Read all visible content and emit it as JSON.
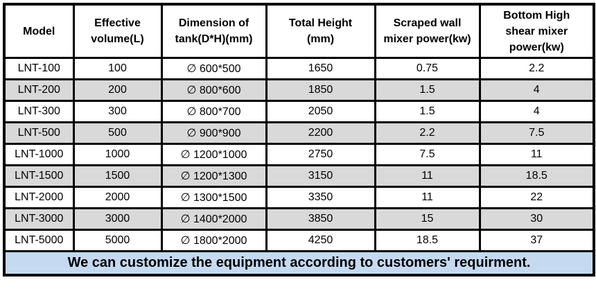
{
  "colors": {
    "row_shade": "#d9d9d9",
    "footer_bg": "#c5d9f1",
    "border": "#000000",
    "text": "#000000"
  },
  "table": {
    "headers": [
      {
        "label": "Model",
        "lines": [
          "Model"
        ]
      },
      {
        "label": "Effective volume(L)",
        "lines": [
          "Effective",
          "volume(L)"
        ]
      },
      {
        "label": "Dimension of tank(D*H)(mm)",
        "lines": [
          "Dimension of",
          "tank(D*H)(mm)"
        ]
      },
      {
        "label": "Total Height (mm)",
        "lines": [
          "Total Height",
          "(mm)"
        ]
      },
      {
        "label": "Scraped wall mixer power(kw)",
        "lines": [
          "Scraped wall",
          "mixer power(kw)"
        ]
      },
      {
        "label": "Bottom High shear mixer power(kw)",
        "lines": [
          "Bottom High",
          "shear mixer",
          "power(kw)"
        ]
      }
    ],
    "rows": [
      [
        "LNT-100",
        "100",
        "∅ 600*500",
        "1650",
        "0.75",
        "2.2"
      ],
      [
        "LNT-200",
        "200",
        "∅ 800*600",
        "1850",
        "1.5",
        "4"
      ],
      [
        "LNT-300",
        "300",
        "∅ 800*700",
        "2050",
        "1.5",
        "4"
      ],
      [
        "LNT-500",
        "500",
        "∅ 900*900",
        "2200",
        "2.2",
        "7.5"
      ],
      [
        "LNT-1000",
        "1000",
        "∅ 1200*1000",
        "2750",
        "7.5",
        "11"
      ],
      [
        "LNT-1500",
        "1500",
        "∅ 1200*1300",
        "3150",
        "11",
        "18.5"
      ],
      [
        "LNT-2000",
        "2000",
        "∅ 1300*1500",
        "3350",
        "11",
        "22"
      ],
      [
        "LNT-3000",
        "3000",
        "∅ 1400*2000",
        "3850",
        "15",
        "30"
      ],
      [
        "LNT-5000",
        "5000",
        "∅ 1800*2000",
        "4250",
        "18.5",
        "37"
      ]
    ],
    "footer": "We can customize the equipment according to customers' requirment."
  }
}
